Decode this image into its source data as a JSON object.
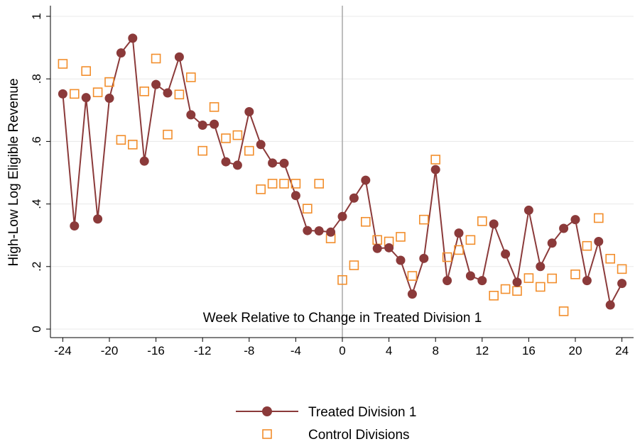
{
  "chart_data": {
    "type": "line",
    "xlabel": "Week Relative to Change in Treated Division 1",
    "ylabel": "High-Low Log Eligible Revenue",
    "xlim": [
      -24,
      24
    ],
    "ylim": [
      0,
      1
    ],
    "xticks": [
      "-24",
      "-20",
      "-16",
      "-12",
      "-8",
      "-4",
      "0",
      "4",
      "8",
      "12",
      "16",
      "20",
      "24"
    ],
    "yticks": [
      "0",
      ".2",
      ".4",
      ".6",
      ".8",
      "1"
    ],
    "grid": "horizontal",
    "reference_line_x": 0,
    "legend_position": "bottom",
    "x": [
      -24,
      -23,
      -22,
      -21,
      -20,
      -19,
      -18,
      -17,
      -16,
      -15,
      -14,
      -13,
      -12,
      -11,
      -10,
      -9,
      -8,
      -7,
      -6,
      -5,
      -4,
      -3,
      -2,
      -1,
      0,
      1,
      2,
      3,
      4,
      5,
      6,
      7,
      8,
      9,
      10,
      11,
      12,
      13,
      14,
      15,
      16,
      17,
      18,
      19,
      20,
      21,
      22,
      23,
      24
    ],
    "series": [
      {
        "name": "Treated Division 1",
        "color": "#8b3a3a",
        "marker": "filled-circle",
        "values": [
          0.752,
          0.33,
          0.74,
          0.352,
          0.738,
          0.883,
          0.93,
          0.537,
          0.782,
          0.755,
          0.87,
          0.685,
          0.652,
          0.655,
          0.535,
          0.524,
          0.695,
          0.59,
          0.531,
          0.53,
          0.427,
          0.315,
          0.314,
          0.31,
          0.36,
          0.419,
          0.476,
          0.258,
          0.26,
          0.22,
          0.112,
          0.226,
          0.51,
          0.155,
          0.307,
          0.17,
          0.155,
          0.336,
          0.24,
          0.15,
          0.38,
          0.2,
          0.275,
          0.322,
          0.35,
          0.155,
          0.28,
          0.077,
          0.146
        ]
      },
      {
        "name": "Control Divisions",
        "color": "#f28e2c",
        "marker": "hollow-square",
        "values": [
          0.848,
          0.752,
          0.825,
          0.757,
          0.79,
          0.605,
          0.59,
          0.76,
          0.865,
          0.622,
          0.75,
          0.805,
          0.57,
          0.71,
          0.61,
          0.62,
          0.57,
          0.447,
          0.465,
          0.465,
          0.465,
          0.385,
          0.465,
          0.29,
          0.157,
          0.204,
          0.343,
          0.285,
          0.28,
          0.295,
          0.17,
          0.35,
          0.542,
          0.23,
          0.253,
          0.285,
          0.345,
          0.107,
          0.128,
          0.122,
          0.163,
          0.135,
          0.162,
          0.057,
          0.175,
          0.266,
          0.355,
          0.225,
          0.192
        ]
      }
    ]
  }
}
